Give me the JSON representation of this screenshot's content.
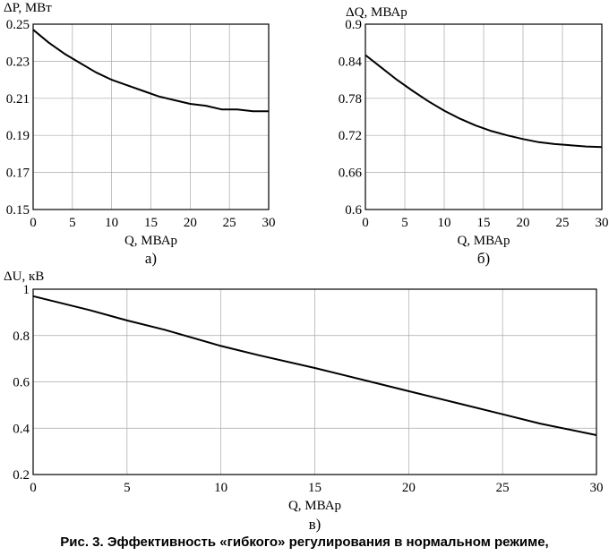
{
  "caption": "Рис. 3. Эффективность «гибкого» регулирования в нормальном режиме,",
  "chart_data": [
    {
      "type": "line",
      "panel": "а)",
      "ylabel": "ΔP, МВт",
      "xlabel": "Q, МВАр",
      "xlim": [
        0,
        30
      ],
      "ylim": [
        0.15,
        0.25
      ],
      "xticks": [
        0,
        5,
        10,
        15,
        20,
        25,
        30
      ],
      "yticks": [
        0.15,
        0.17,
        0.19,
        0.21,
        0.23,
        0.25
      ],
      "ytick_labels": [
        "0.15",
        "0.17",
        "0.19",
        "0.21",
        "0.23",
        "0.25"
      ],
      "grid": true,
      "series": [
        {
          "x": [
            0,
            2,
            4,
            6,
            8,
            10,
            12,
            14,
            16,
            18,
            20,
            22,
            24,
            26,
            28,
            30
          ],
          "y": [
            0.247,
            0.24,
            0.234,
            0.229,
            0.224,
            0.22,
            0.217,
            0.214,
            0.211,
            0.209,
            0.207,
            0.206,
            0.204,
            0.204,
            0.203,
            0.203
          ]
        }
      ]
    },
    {
      "type": "line",
      "panel": "б)",
      "ylabel": "ΔQ, МВАр",
      "xlabel": "Q, МВАр",
      "xlim": [
        0,
        30
      ],
      "ylim": [
        0.6,
        0.9
      ],
      "xticks": [
        0,
        5,
        10,
        15,
        20,
        25,
        30
      ],
      "yticks": [
        0.6,
        0.66,
        0.72,
        0.78,
        0.84,
        0.9
      ],
      "ytick_labels": [
        "0.6",
        "0.66",
        "0.72",
        "0.78",
        "0.84",
        "0.9"
      ],
      "grid": true,
      "series": [
        {
          "x": [
            0,
            2,
            4,
            6,
            8,
            10,
            12,
            14,
            16,
            18,
            20,
            22,
            24,
            26,
            28,
            30
          ],
          "y": [
            0.85,
            0.83,
            0.81,
            0.792,
            0.775,
            0.76,
            0.747,
            0.736,
            0.727,
            0.72,
            0.714,
            0.709,
            0.706,
            0.704,
            0.702,
            0.701
          ]
        }
      ]
    },
    {
      "type": "line",
      "panel": "в)",
      "ylabel": "ΔU, кВ",
      "xlabel": "Q, МВАр",
      "xlim": [
        0,
        30
      ],
      "ylim": [
        0.2,
        1.0
      ],
      "xticks": [
        0,
        5,
        10,
        15,
        20,
        25,
        30
      ],
      "yticks": [
        0.2,
        0.4,
        0.6,
        0.8,
        1.0
      ],
      "ytick_labels": [
        "0.2",
        "0.4",
        "0.6",
        "0.8",
        "1"
      ],
      "grid": true,
      "series": [
        {
          "x": [
            0,
            3,
            5,
            7,
            10,
            12,
            15,
            18,
            20,
            22,
            25,
            27,
            30
          ],
          "y": [
            0.97,
            0.91,
            0.865,
            0.825,
            0.755,
            0.715,
            0.66,
            0.6,
            0.56,
            0.52,
            0.46,
            0.42,
            0.37
          ]
        }
      ]
    }
  ]
}
